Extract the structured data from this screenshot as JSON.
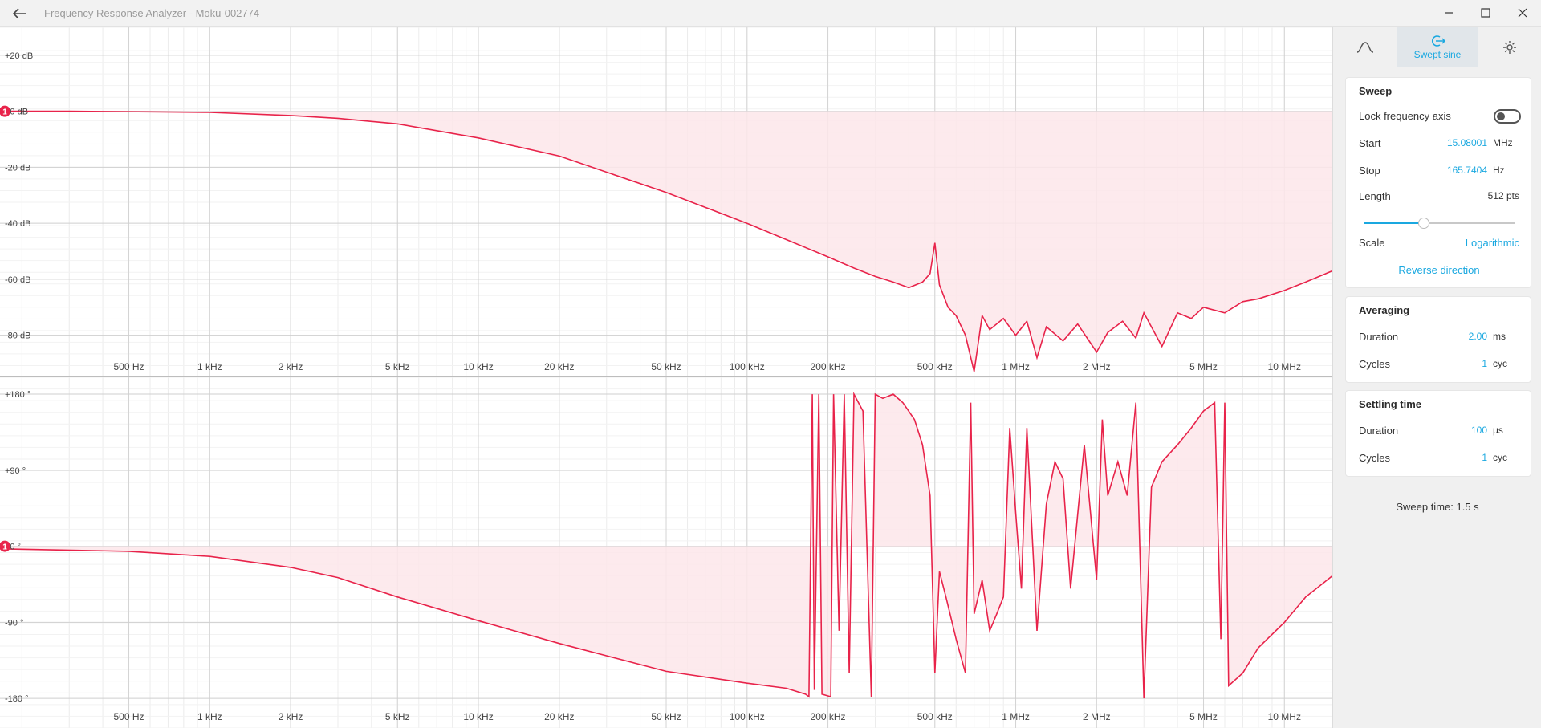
{
  "window": {
    "title": "Frequency Response Analyzer - Moku-002774"
  },
  "tabs": [
    {
      "icon": "sine-wave-icon",
      "label": ""
    },
    {
      "icon": "swept-sine-icon",
      "label": "Swept sine"
    },
    {
      "icon": "gear-icon",
      "label": ""
    }
  ],
  "sweep": {
    "title": "Sweep",
    "lock_label": "Lock frequency axis",
    "lock_on": false,
    "start_label": "Start",
    "start_value": "15.08001",
    "start_unit": "MHz",
    "stop_label": "Stop",
    "stop_value": "165.7404",
    "stop_unit": "Hz",
    "length_label": "Length",
    "length_value": "512 pts",
    "length_fraction": 0.4,
    "scale_label": "Scale",
    "scale_value": "Logarithmic",
    "reverse_label": "Reverse direction"
  },
  "averaging": {
    "title": "Averaging",
    "duration_label": "Duration",
    "duration_value": "2.00",
    "duration_unit": "ms",
    "cycles_label": "Cycles",
    "cycles_value": "1",
    "cycles_unit": "cyc"
  },
  "settling": {
    "title": "Settling time",
    "duration_label": "Duration",
    "duration_value": "100",
    "duration_unit": "μs",
    "cycles_label": "Cycles",
    "cycles_value": "1",
    "cycles_unit": "cyc"
  },
  "sweep_time": "Sweep time: 1.5 s",
  "colors": {
    "trace": "#e8234a",
    "fill": "#fde6ea",
    "accent": "#1aa8e0"
  },
  "chart_data": [
    {
      "type": "line",
      "scale": "log",
      "xlim": [
        165.7404,
        15080010
      ],
      "ylim": [
        -95,
        30
      ],
      "x_ticks": [
        {
          "value": 500,
          "label": "500 Hz"
        },
        {
          "value": 1000,
          "label": "1 kHz"
        },
        {
          "value": 2000,
          "label": "2 kHz"
        },
        {
          "value": 5000,
          "label": "5 kHz"
        },
        {
          "value": 10000,
          "label": "10 kHz"
        },
        {
          "value": 20000,
          "label": "20 kHz"
        },
        {
          "value": 50000,
          "label": "50 kHz"
        },
        {
          "value": 100000,
          "label": "100 kHz"
        },
        {
          "value": 200000,
          "label": "200 kHz"
        },
        {
          "value": 500000,
          "label": "500 kHz"
        },
        {
          "value": 1000000,
          "label": "1 MHz"
        },
        {
          "value": 2000000,
          "label": "2 MHz"
        },
        {
          "value": 5000000,
          "label": "5 MHz"
        },
        {
          "value": 10000000,
          "label": "10 MHz"
        }
      ],
      "y_ticks": [
        {
          "value": 20,
          "label": "+20 dB"
        },
        {
          "value": 0,
          "label": "+0 dB"
        },
        {
          "value": -20,
          "label": "-20 dB"
        },
        {
          "value": -40,
          "label": "-40 dB"
        },
        {
          "value": -60,
          "label": "-60 dB"
        },
        {
          "value": -80,
          "label": "-80 dB"
        }
      ],
      "marker": {
        "label": "1",
        "value": 0
      },
      "points": [
        [
          165.7,
          0
        ],
        [
          300,
          0
        ],
        [
          600,
          -0.2
        ],
        [
          1000,
          -0.4
        ],
        [
          2000,
          -1.5
        ],
        [
          3000,
          -2.5
        ],
        [
          5000,
          -4.5
        ],
        [
          10000,
          -9.5
        ],
        [
          20000,
          -16
        ],
        [
          50000,
          -29
        ],
        [
          100000,
          -40
        ],
        [
          150000,
          -47
        ],
        [
          200000,
          -52
        ],
        [
          250000,
          -56
        ],
        [
          300000,
          -59
        ],
        [
          350000,
          -61
        ],
        [
          400000,
          -63
        ],
        [
          450000,
          -61
        ],
        [
          480000,
          -58
        ],
        [
          500000,
          -47
        ],
        [
          520000,
          -62
        ],
        [
          560000,
          -70
        ],
        [
          600000,
          -73
        ],
        [
          650000,
          -80
        ],
        [
          700000,
          -93
        ],
        [
          750000,
          -73
        ],
        [
          800000,
          -78
        ],
        [
          900000,
          -74
        ],
        [
          1000000,
          -80
        ],
        [
          1100000,
          -75
        ],
        [
          1200000,
          -88
        ],
        [
          1300000,
          -77
        ],
        [
          1500000,
          -82
        ],
        [
          1700000,
          -76
        ],
        [
          2000000,
          -86
        ],
        [
          2200000,
          -79
        ],
        [
          2500000,
          -75
        ],
        [
          2800000,
          -81
        ],
        [
          3000000,
          -72
        ],
        [
          3500000,
          -84
        ],
        [
          4000000,
          -72
        ],
        [
          4500000,
          -74
        ],
        [
          5000000,
          -70
        ],
        [
          6000000,
          -72
        ],
        [
          7000000,
          -68
        ],
        [
          8000000,
          -67
        ],
        [
          10000000,
          -64
        ],
        [
          12000000,
          -61
        ],
        [
          15080010,
          -57
        ]
      ]
    },
    {
      "type": "line",
      "scale": "log",
      "xlim": [
        165.7404,
        15080010
      ],
      "ylim": [
        -215,
        200
      ],
      "x_ticks": [
        {
          "value": 500,
          "label": "500 Hz"
        },
        {
          "value": 1000,
          "label": "1 kHz"
        },
        {
          "value": 2000,
          "label": "2 kHz"
        },
        {
          "value": 5000,
          "label": "5 kHz"
        },
        {
          "value": 10000,
          "label": "10 kHz"
        },
        {
          "value": 20000,
          "label": "20 kHz"
        },
        {
          "value": 50000,
          "label": "50 kHz"
        },
        {
          "value": 100000,
          "label": "100 kHz"
        },
        {
          "value": 200000,
          "label": "200 kHz"
        },
        {
          "value": 500000,
          "label": "500 kHz"
        },
        {
          "value": 1000000,
          "label": "1 MHz"
        },
        {
          "value": 2000000,
          "label": "2 MHz"
        },
        {
          "value": 5000000,
          "label": "5 MHz"
        },
        {
          "value": 10000000,
          "label": "10 MHz"
        }
      ],
      "y_ticks": [
        {
          "value": 180,
          "label": "+180 °"
        },
        {
          "value": 90,
          "label": "+90 °"
        },
        {
          "value": 0,
          "label": "+0 °"
        },
        {
          "value": -90,
          "label": "-90 °"
        },
        {
          "value": -180,
          "label": "-180 °"
        }
      ],
      "marker": {
        "label": "1",
        "value": 0
      },
      "points": [
        [
          165.7,
          -3
        ],
        [
          500,
          -6
        ],
        [
          1000,
          -12
        ],
        [
          2000,
          -25
        ],
        [
          3000,
          -37
        ],
        [
          5000,
          -60
        ],
        [
          10000,
          -88
        ],
        [
          20000,
          -115
        ],
        [
          50000,
          -148
        ],
        [
          100000,
          -162
        ],
        [
          140000,
          -168
        ],
        [
          165000,
          -175
        ],
        [
          170000,
          -178
        ],
        [
          175000,
          180
        ],
        [
          178000,
          -170
        ],
        [
          185000,
          180
        ],
        [
          190000,
          -175
        ],
        [
          205000,
          -178
        ],
        [
          210000,
          180
        ],
        [
          220000,
          -100
        ],
        [
          230000,
          180
        ],
        [
          240000,
          -150
        ],
        [
          250000,
          180
        ],
        [
          270000,
          160
        ],
        [
          290000,
          -178
        ],
        [
          300000,
          180
        ],
        [
          320000,
          175
        ],
        [
          350000,
          180
        ],
        [
          380000,
          170
        ],
        [
          420000,
          150
        ],
        [
          450000,
          120
        ],
        [
          480000,
          60
        ],
        [
          500000,
          -150
        ],
        [
          520000,
          -30
        ],
        [
          550000,
          -60
        ],
        [
          600000,
          -110
        ],
        [
          650000,
          -150
        ],
        [
          680000,
          170
        ],
        [
          700000,
          -80
        ],
        [
          750000,
          -40
        ],
        [
          800000,
          -100
        ],
        [
          850000,
          -80
        ],
        [
          900000,
          -60
        ],
        [
          950000,
          140
        ],
        [
          1000000,
          40
        ],
        [
          1050000,
          -50
        ],
        [
          1100000,
          140
        ],
        [
          1200000,
          -100
        ],
        [
          1300000,
          50
        ],
        [
          1400000,
          100
        ],
        [
          1500000,
          80
        ],
        [
          1600000,
          -50
        ],
        [
          1800000,
          120
        ],
        [
          2000000,
          -40
        ],
        [
          2100000,
          150
        ],
        [
          2200000,
          60
        ],
        [
          2400000,
          100
        ],
        [
          2600000,
          60
        ],
        [
          2800000,
          170
        ],
        [
          3000000,
          -180
        ],
        [
          3200000,
          70
        ],
        [
          3500000,
          100
        ],
        [
          4000000,
          120
        ],
        [
          4500000,
          140
        ],
        [
          5000000,
          160
        ],
        [
          5500000,
          170
        ],
        [
          5800000,
          -110
        ],
        [
          6000000,
          170
        ],
        [
          6200000,
          -165
        ],
        [
          7000000,
          -150
        ],
        [
          8000000,
          -120
        ],
        [
          10000000,
          -90
        ],
        [
          12000000,
          -60
        ],
        [
          15080010,
          -35
        ]
      ]
    }
  ]
}
